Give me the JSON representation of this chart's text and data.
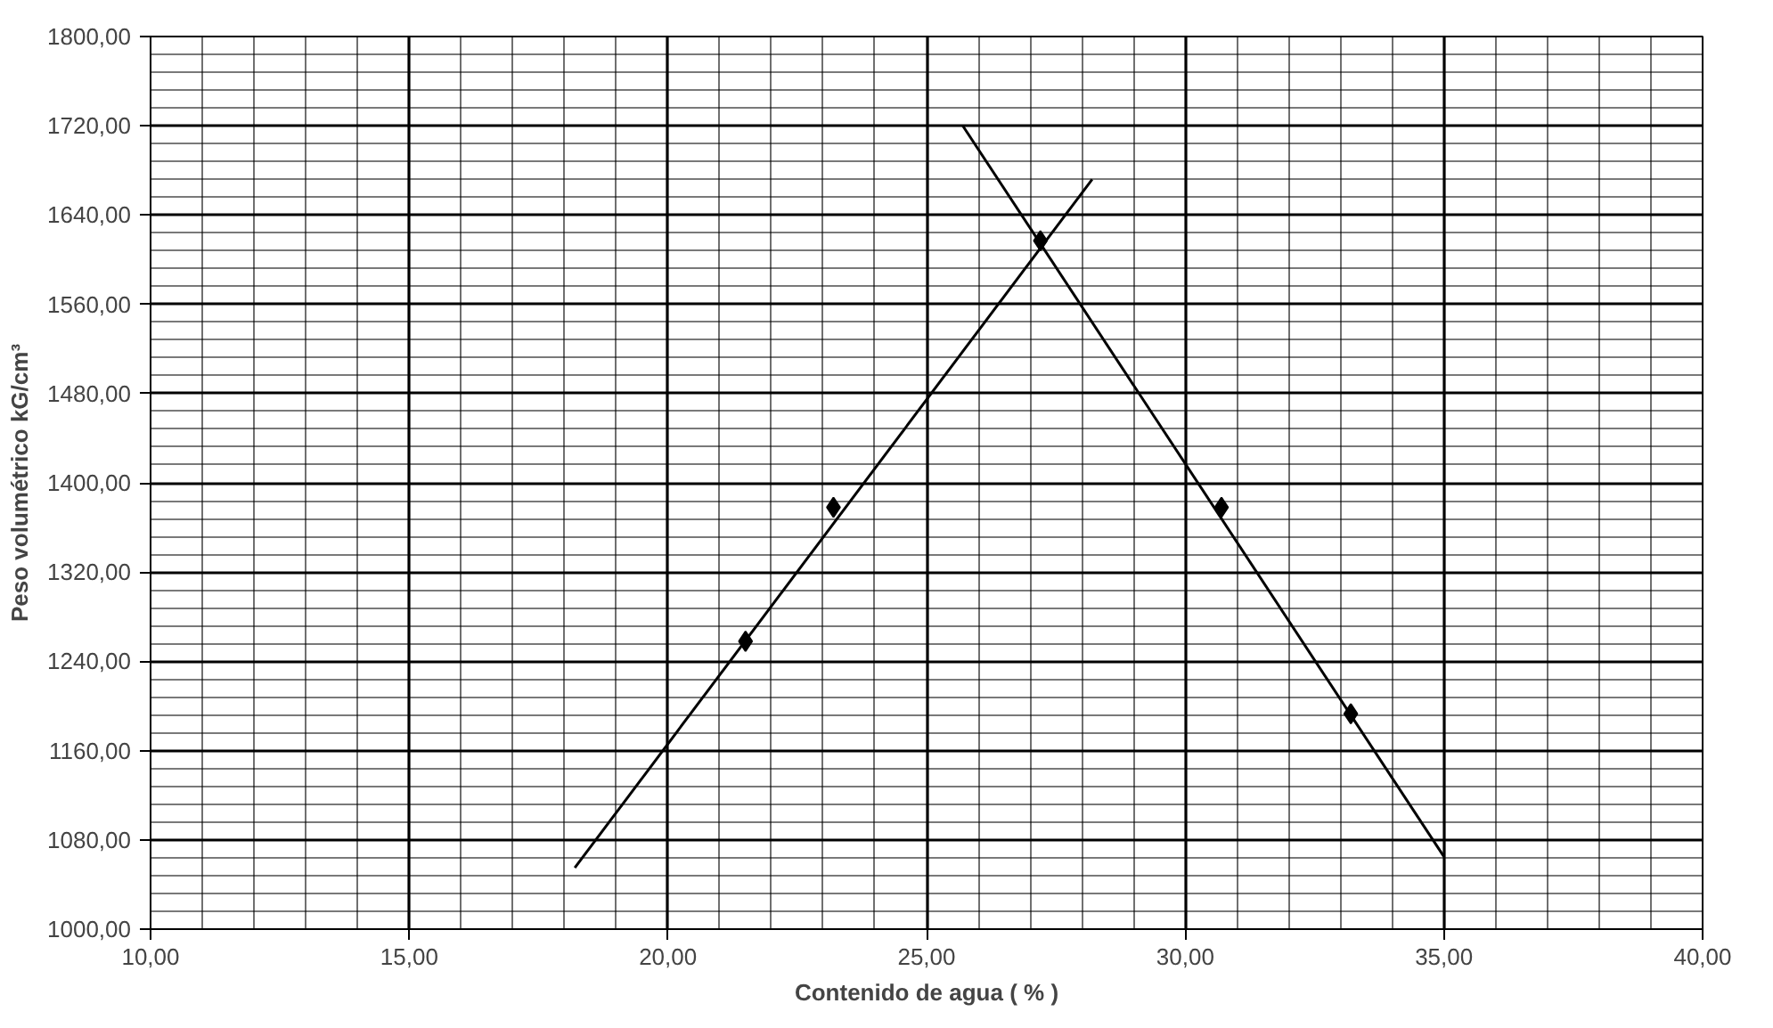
{
  "chart_data": {
    "type": "scatter",
    "xlabel": "Contenido de agua ( % )",
    "ylabel": "Peso volumétrico kG/cm³",
    "xlim": [
      10,
      40
    ],
    "ylim": [
      1000,
      1800
    ],
    "xticks": [
      {
        "value": 10,
        "label": "10,00"
      },
      {
        "value": 15,
        "label": "15,00"
      },
      {
        "value": 20,
        "label": "20,00"
      },
      {
        "value": 25,
        "label": "25,00"
      },
      {
        "value": 30,
        "label": "30,00"
      },
      {
        "value": 35,
        "label": "35,00"
      },
      {
        "value": 40,
        "label": "40,00"
      }
    ],
    "yticks": [
      {
        "value": 1000,
        "label": "1000,00"
      },
      {
        "value": 1080,
        "label": "1080,00"
      },
      {
        "value": 1160,
        "label": "1160,00"
      },
      {
        "value": 1240,
        "label": "1240,00"
      },
      {
        "value": 1320,
        "label": "1320,00"
      },
      {
        "value": 1400,
        "label": "1400,00"
      },
      {
        "value": 1480,
        "label": "1480,00"
      },
      {
        "value": 1560,
        "label": "1560,00"
      },
      {
        "value": 1640,
        "label": "1640,00"
      },
      {
        "value": 1720,
        "label": "1720,00"
      },
      {
        "value": 1800,
        "label": "1800,00"
      }
    ],
    "grid": true,
    "series": [
      {
        "color": "#000000",
        "marker": "diamond",
        "x": [
          21.5,
          23.2,
          27.2,
          30.7,
          33.2
        ],
        "values": [
          1258,
          1378,
          1617,
          1378,
          1193
        ]
      },
      {
        "type": "line",
        "color": "#000000",
        "line_style": "solid",
        "x": [
          18.2,
          28.2
        ],
        "values": [
          1055,
          1672
        ]
      },
      {
        "type": "line",
        "color": "#000000",
        "line_style": "solid",
        "x": [
          25.7,
          35.0
        ],
        "values": [
          1720,
          1065
        ]
      }
    ]
  }
}
